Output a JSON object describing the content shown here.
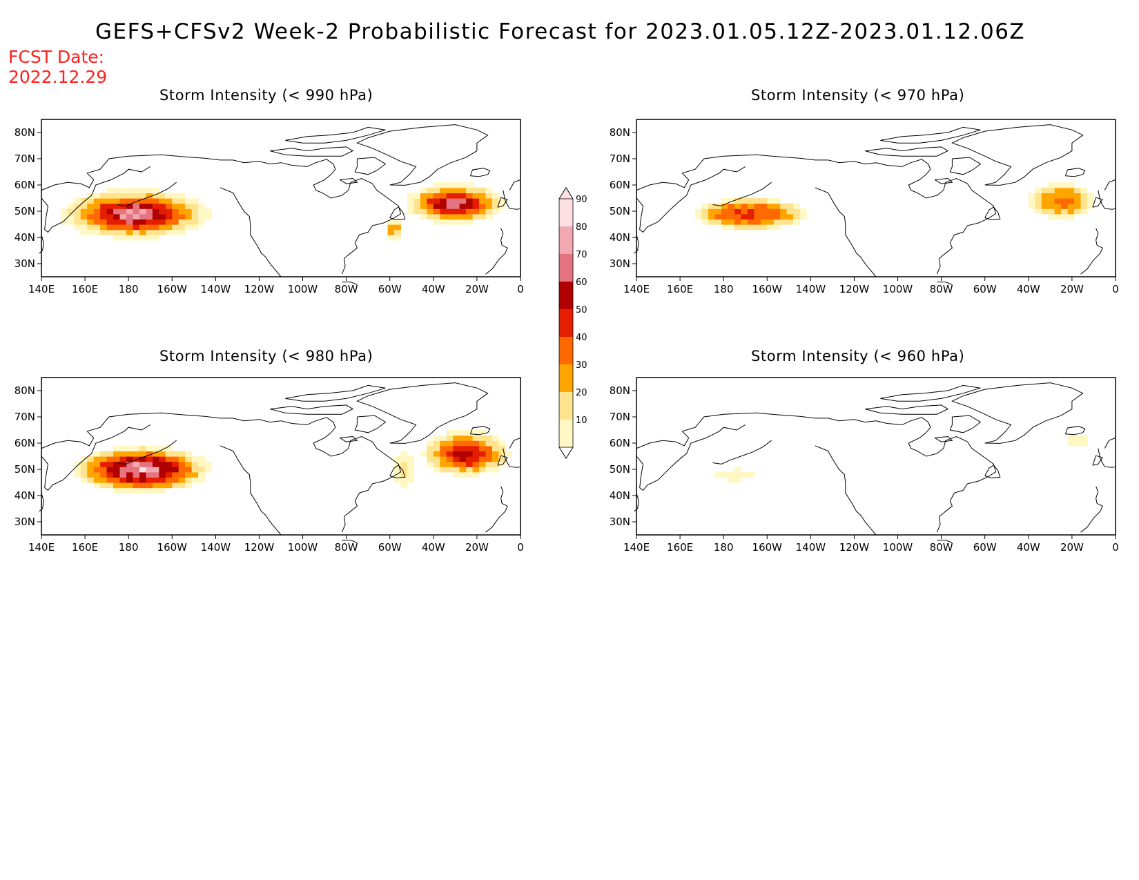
{
  "title": "GEFS+CFSv2 Week-2 Probabilistic Forecast for 2023.01.05.12Z-2023.01.12.06Z",
  "forecast_date_label": "FCST Date:",
  "forecast_date": "2022.12.29",
  "colors": {
    "coast": "#000000",
    "levels": [
      "#fff8c4",
      "#ffe490",
      "#ffa500",
      "#ff6a00",
      "#e61e00",
      "#b00000",
      "#e47480",
      "#f2a8b0",
      "#fde0e4"
    ]
  },
  "colorbar": {
    "levels": [
      10,
      20,
      30,
      40,
      50,
      60,
      70,
      80,
      90
    ],
    "labels": [
      "10",
      "20",
      "30",
      "40",
      "50",
      "60",
      "70",
      "80",
      "90"
    ]
  },
  "map_axes": {
    "lon_labels": [
      "140E",
      "160E",
      "180",
      "160W",
      "140W",
      "120W",
      "100W",
      "80W",
      "60W",
      "40W",
      "20W",
      "0"
    ],
    "lat_labels": [
      "80N",
      "70N",
      "60N",
      "50N",
      "40N",
      "30N"
    ]
  },
  "panels": [
    {
      "id": "p990",
      "title": "Storm Intensity (< 990 hPa)",
      "blobs": [
        {
          "lon": 183,
          "lat": 49,
          "rlon": 38,
          "rlat": 10.5,
          "peak": 95,
          "decay": 0.9
        },
        {
          "lon": 330,
          "lat": 53,
          "rlon": 25,
          "rlat": 8.5,
          "peak": 92,
          "decay": 0.9
        },
        {
          "lon": 302,
          "lat": 43,
          "rlon": 5,
          "rlat": 4,
          "peak": 45,
          "decay": 1.4
        }
      ]
    },
    {
      "id": "p970",
      "title": "Storm Intensity (< 970 hPa)",
      "blobs": [
        {
          "lon": 192,
          "lat": 49,
          "rlon": 28,
          "rlat": 6.5,
          "peak": 50,
          "decay": 2.3
        },
        {
          "lon": 335,
          "lat": 54,
          "rlon": 16,
          "rlat": 7.5,
          "peak": 42,
          "decay": 2.3
        }
      ]
    },
    {
      "id": "p980",
      "title": "Storm Intensity (< 980 hPa)",
      "blobs": [
        {
          "lon": 186,
          "lat": 50,
          "rlon": 34,
          "rlat": 9.5,
          "peak": 88,
          "decay": 1.3
        },
        {
          "lon": 335,
          "lat": 56,
          "rlon": 22,
          "rlat": 9.5,
          "peak": 66,
          "decay": 1.4
        },
        {
          "lon": 306,
          "lat": 50,
          "rlon": 7,
          "rlat": 9,
          "peak": 25,
          "decay": 1.6
        }
      ]
    },
    {
      "id": "p960",
      "title": "Storm Intensity (< 960 hPa)",
      "blobs": [
        {
          "lon": 186,
          "lat": 48,
          "rlon": 12,
          "rlat": 3,
          "peak": 19,
          "decay": 2.2
        },
        {
          "lon": 342,
          "lat": 61,
          "rlon": 7,
          "rlat": 3,
          "peak": 17,
          "decay": 2.2
        }
      ]
    }
  ]
}
